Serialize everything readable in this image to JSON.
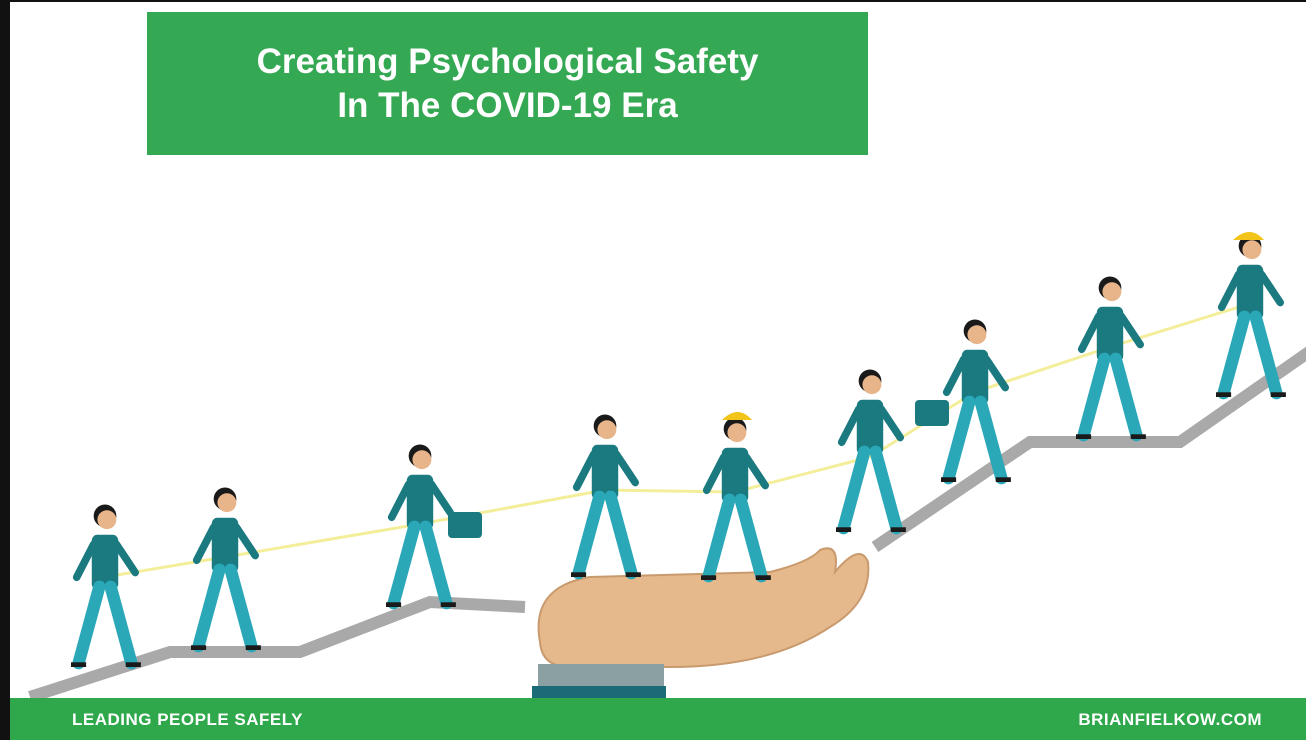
{
  "header": {
    "title_lines": [
      "Creating Psychological Safety",
      "In The COVID-19 Era"
    ]
  },
  "footer": {
    "left": "LEADING PEOPLE SAFELY",
    "right": "BRIANFIELKOW.COM"
  }
}
